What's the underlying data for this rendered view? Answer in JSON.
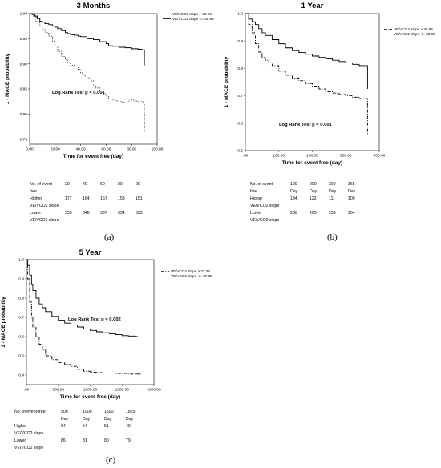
{
  "chart_data": [
    {
      "panel_label": "(a)",
      "type": "line",
      "title": "3 Months",
      "xlabel": "Time for event free (day)",
      "ylabel": "1 - MACE probability",
      "xlim": [
        0,
        100
      ],
      "ylim": [
        0.74,
        1.0
      ],
      "xticks": [
        "0.00",
        "20.00",
        "40.00",
        "60.00",
        "80.00",
        "100.00"
      ],
      "xtick_values": [
        0,
        20,
        40,
        60,
        80,
        100
      ],
      "yticks": [
        "0.75",
        "0.80",
        "0.85",
        "0.90",
        "0.95",
        "1.00"
      ],
      "ytick_values": [
        0.75,
        0.8,
        0.85,
        0.9,
        0.95,
        1.0
      ],
      "annotation": "Log Rank Test p < 0.001",
      "legend_position": "top-right",
      "series": [
        {
          "name": "VE/VCO2 slope > 38.95",
          "style": "dotted",
          "x": [
            0,
            3,
            5,
            8,
            10,
            12,
            15,
            18,
            20,
            22,
            25,
            28,
            30,
            32,
            35,
            38,
            40,
            42,
            45,
            48,
            50,
            52,
            55,
            58,
            60,
            62,
            65,
            68,
            70,
            72,
            75,
            78,
            80,
            82,
            85,
            88,
            90,
            90
          ],
          "y": [
            1.0,
            0.995,
            0.985,
            0.975,
            0.968,
            0.962,
            0.955,
            0.945,
            0.935,
            0.925,
            0.915,
            0.908,
            0.902,
            0.897,
            0.894,
            0.889,
            0.882,
            0.876,
            0.872,
            0.866,
            0.858,
            0.852,
            0.846,
            0.84,
            0.836,
            0.83,
            0.828,
            0.826,
            0.825,
            0.824,
            0.822,
            0.83,
            0.828,
            0.826,
            0.825,
            0.824,
            0.8,
            0.765
          ]
        },
        {
          "name": "VE/VCO2 slope <= 38.95",
          "style": "solid",
          "x": [
            0,
            2,
            4,
            6,
            8,
            10,
            12,
            15,
            18,
            20,
            22,
            25,
            28,
            30,
            32,
            35,
            38,
            40,
            45,
            50,
            55,
            60,
            62,
            65,
            70,
            75,
            80,
            85,
            88,
            90,
            90
          ],
          "y": [
            1.0,
            0.998,
            0.995,
            0.99,
            0.985,
            0.983,
            0.98,
            0.978,
            0.975,
            0.973,
            0.97,
            0.966,
            0.962,
            0.96,
            0.958,
            0.957,
            0.955,
            0.954,
            0.95,
            0.948,
            0.944,
            0.94,
            0.936,
            0.935,
            0.933,
            0.932,
            0.93,
            0.929,
            0.928,
            0.927,
            0.897
          ]
        }
      ],
      "table": {
        "header_label": [
          "No. of event-",
          "free"
        ],
        "timepoints": [
          "20",
          "40",
          "60",
          "80",
          "90"
        ],
        "units": [],
        "rows": [
          {
            "label": [
              "Higher",
              "VE/VCO2 slope"
            ],
            "values": [
              "177",
              "164",
              "157",
              "153",
              "151"
            ]
          },
          {
            "label": [
              "Lower",
              "VE/VCO2 slope"
            ],
            "values": [
              "355",
              "346",
              "337",
              "334",
              "333"
            ]
          }
        ]
      }
    },
    {
      "panel_label": "(b)",
      "type": "line",
      "title": "1 Year",
      "xlabel": "Time for event free (day)",
      "ylabel": "1 - MACE probability",
      "xlim": [
        0,
        400
      ],
      "ylim": [
        0.5,
        1.0
      ],
      "xticks": [
        ".00",
        "100.00",
        "200.00",
        "300.00",
        "400.00"
      ],
      "xtick_values": [
        0,
        100,
        200,
        300,
        400
      ],
      "yticks": [
        "0.5",
        "0.6",
        "0.7",
        "0.8",
        "0.9",
        "1.0"
      ],
      "ytick_values": [
        0.5,
        0.6,
        0.7,
        0.8,
        0.9,
        1.0
      ],
      "annotation": "Log Rank Test p < 0.001",
      "legend_position": "top-right",
      "series": [
        {
          "name": "VE/VCO2 slope > 38.95",
          "style": "dashdot",
          "x": [
            0,
            10,
            20,
            30,
            40,
            50,
            60,
            70,
            80,
            100,
            120,
            140,
            160,
            180,
            200,
            220,
            240,
            260,
            280,
            300,
            320,
            340,
            360,
            365,
            365
          ],
          "y": [
            1.0,
            0.96,
            0.93,
            0.89,
            0.86,
            0.84,
            0.83,
            0.82,
            0.81,
            0.79,
            0.775,
            0.765,
            0.755,
            0.745,
            0.735,
            0.725,
            0.715,
            0.71,
            0.705,
            0.7,
            0.695,
            0.69,
            0.69,
            0.66,
            0.56
          ]
        },
        {
          "name": "VE/VCO2 slope <= 38.95",
          "style": "solid",
          "x": [
            0,
            10,
            20,
            30,
            40,
            50,
            60,
            80,
            100,
            120,
            140,
            160,
            180,
            200,
            220,
            240,
            260,
            280,
            300,
            320,
            340,
            360,
            365,
            365
          ],
          "y": [
            1.0,
            0.98,
            0.97,
            0.96,
            0.945,
            0.93,
            0.92,
            0.905,
            0.89,
            0.875,
            0.865,
            0.858,
            0.852,
            0.845,
            0.84,
            0.835,
            0.83,
            0.825,
            0.82,
            0.815,
            0.81,
            0.81,
            0.81,
            0.725
          ]
        }
      ],
      "table": {
        "header_label": [
          "No. of event-",
          "free"
        ],
        "timepoints": [
          "100",
          "200",
          "300",
          "365"
        ],
        "units": [
          "Day",
          "Day",
          "Day",
          "Day"
        ],
        "rows": [
          {
            "label": [
              "Higher",
              "VE/VCO2 slope"
            ],
            "values": [
              "134",
              "122",
              "111",
              "109"
            ]
          },
          {
            "label": [
              "Lower",
              "VE/VCO2 slope"
            ],
            "values": [
              "280",
              "265",
              "259",
              "254"
            ]
          }
        ]
      }
    },
    {
      "panel_label": "(c)",
      "type": "line",
      "title": "5 Year",
      "xlabel": "Time for event free (day)",
      "ylabel": "1 - MACE probability",
      "xlim": [
        0,
        2000
      ],
      "ylim": [
        0.35,
        1.0
      ],
      "xticks": [
        ".00",
        "500.00",
        "1000.00",
        "1500.00",
        "2000.00"
      ],
      "xtick_values": [
        0,
        500,
        1000,
        1500,
        2000
      ],
      "yticks": [
        "0.4",
        "0.5",
        "0.6",
        "0.7",
        "0.8",
        "0.9",
        "1.0"
      ],
      "ytick_values": [
        0.4,
        0.5,
        0.6,
        0.7,
        0.8,
        0.9,
        1.0
      ],
      "annotation": "Log Rank Test p = 0.002",
      "legend_position": "top-right",
      "series": [
        {
          "name": "VE/VCO2 slope > 37.35",
          "style": "dashdot",
          "x": [
            0,
            20,
            50,
            80,
            100,
            150,
            200,
            250,
            300,
            400,
            500,
            600,
            700,
            800,
            900,
            1000,
            1100,
            1200,
            1400,
            1600,
            1800
          ],
          "y": [
            1.0,
            0.9,
            0.78,
            0.7,
            0.65,
            0.6,
            0.56,
            0.53,
            0.5,
            0.48,
            0.465,
            0.455,
            0.445,
            0.43,
            0.42,
            0.415,
            0.412,
            0.41,
            0.408,
            0.405,
            0.405
          ]
        },
        {
          "name": "VE/VCO2 slope <= 37.35",
          "style": "solid",
          "x": [
            0,
            20,
            50,
            80,
            100,
            150,
            200,
            250,
            300,
            400,
            500,
            600,
            700,
            800,
            900,
            1000,
            1100,
            1200,
            1300,
            1400,
            1500,
            1600,
            1700,
            1750
          ],
          "y": [
            1.0,
            0.97,
            0.92,
            0.87,
            0.84,
            0.8,
            0.77,
            0.75,
            0.73,
            0.705,
            0.685,
            0.67,
            0.66,
            0.65,
            0.64,
            0.632,
            0.625,
            0.62,
            0.615,
            0.61,
            0.605,
            0.603,
            0.6,
            0.6
          ]
        }
      ],
      "table": {
        "header_label": [
          "No. of event-free",
          ""
        ],
        "timepoints": [
          "500",
          "1000",
          "1500",
          "1825"
        ],
        "units": [
          "Day",
          "Day",
          "Day",
          "Day"
        ],
        "rows": [
          {
            "label": [
              "Higher",
              "VE/VCO2 slope"
            ],
            "values": [
              "64",
              "54",
              "51",
              "49"
            ]
          },
          {
            "label": [
              "Lower",
              "VE/VCO2 slope"
            ],
            "values": [
              "86",
              "81",
              "80",
              "79"
            ]
          }
        ]
      }
    }
  ]
}
